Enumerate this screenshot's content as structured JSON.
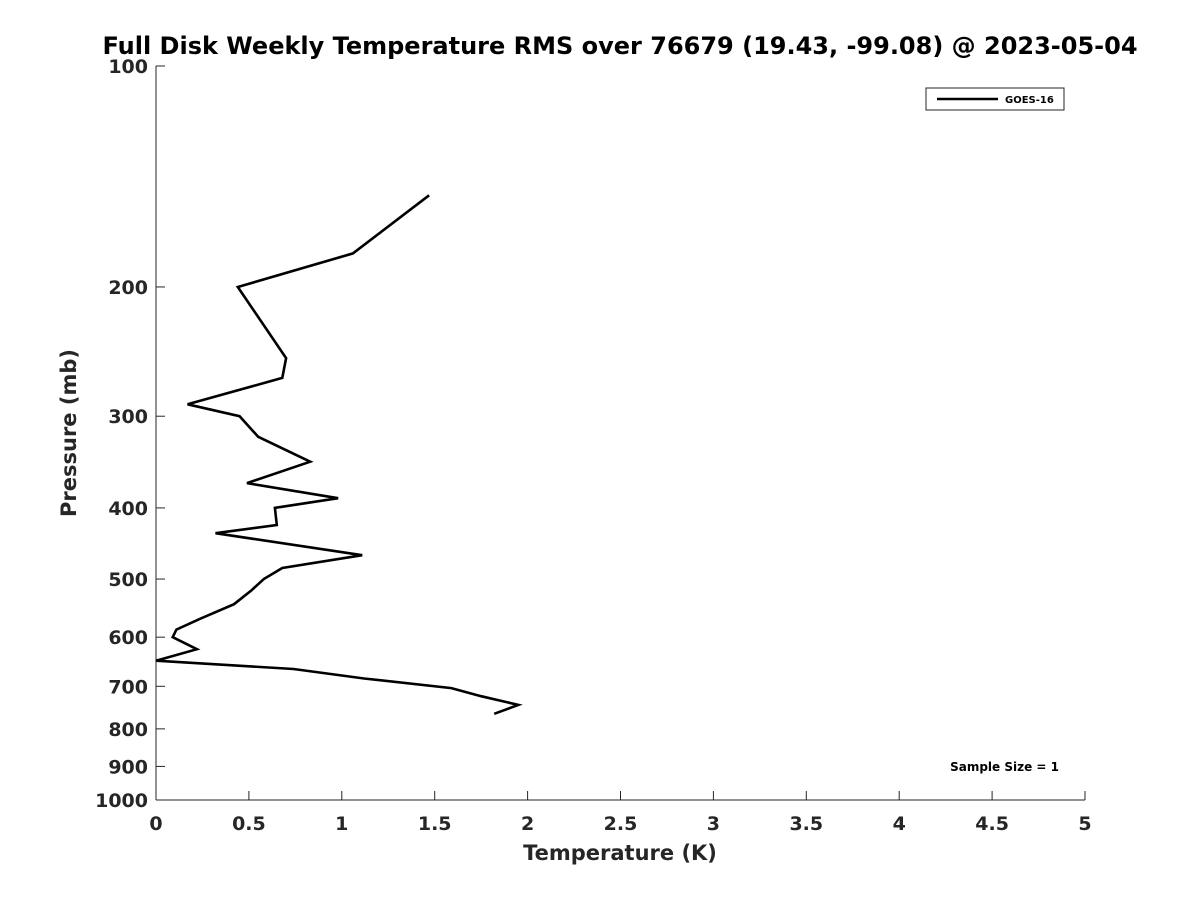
{
  "chart_data": {
    "type": "line",
    "title": "Full Disk Weekly Temperature RMS over 76679 (19.43, -99.08) @ 2023-05-04",
    "xlabel": "Temperature (K)",
    "ylabel": "Pressure (mb)",
    "xlim": [
      0,
      5
    ],
    "ylim": [
      1000,
      100
    ],
    "y_scale": "log",
    "x_ticks": [
      0,
      0.5,
      1,
      1.5,
      2,
      2.5,
      3,
      3.5,
      4,
      4.5,
      5
    ],
    "x_tick_labels": [
      "0",
      "0.5",
      "1",
      "1.5",
      "2",
      "2.5",
      "3",
      "3.5",
      "4",
      "4.5",
      "5"
    ],
    "y_ticks": [
      100,
      200,
      300,
      400,
      500,
      600,
      700,
      800,
      900,
      1000
    ],
    "y_tick_labels": [
      "100",
      "200",
      "300",
      "400",
      "500",
      "600",
      "700",
      "800",
      "900",
      "1000"
    ],
    "grid": false,
    "legend_position": "top-right",
    "series": [
      {
        "name": "GOES-16",
        "color": "#000000",
        "x": [
          1.47,
          1.06,
          0.44,
          0.7,
          0.68,
          0.17,
          0.45,
          0.55,
          0.83,
          0.49,
          0.98,
          0.64,
          0.65,
          0.32,
          1.11,
          0.68,
          0.58,
          0.51,
          0.42,
          0.24,
          0.11,
          0.09,
          0.22,
          0.0,
          0.74,
          1.12,
          1.59,
          1.75,
          1.95,
          1.82
        ],
        "y": [
          150,
          180,
          200,
          250,
          266,
          289,
          300,
          320,
          346,
          370,
          388,
          400,
          422,
          433,
          464,
          483,
          500,
          519,
          541,
          566,
          586,
          600,
          623,
          646,
          663,
          683,
          704,
          722,
          742,
          763
        ]
      }
    ],
    "annotations": [
      {
        "text": "Sample Size = 1",
        "position": "bottom-right"
      }
    ]
  }
}
